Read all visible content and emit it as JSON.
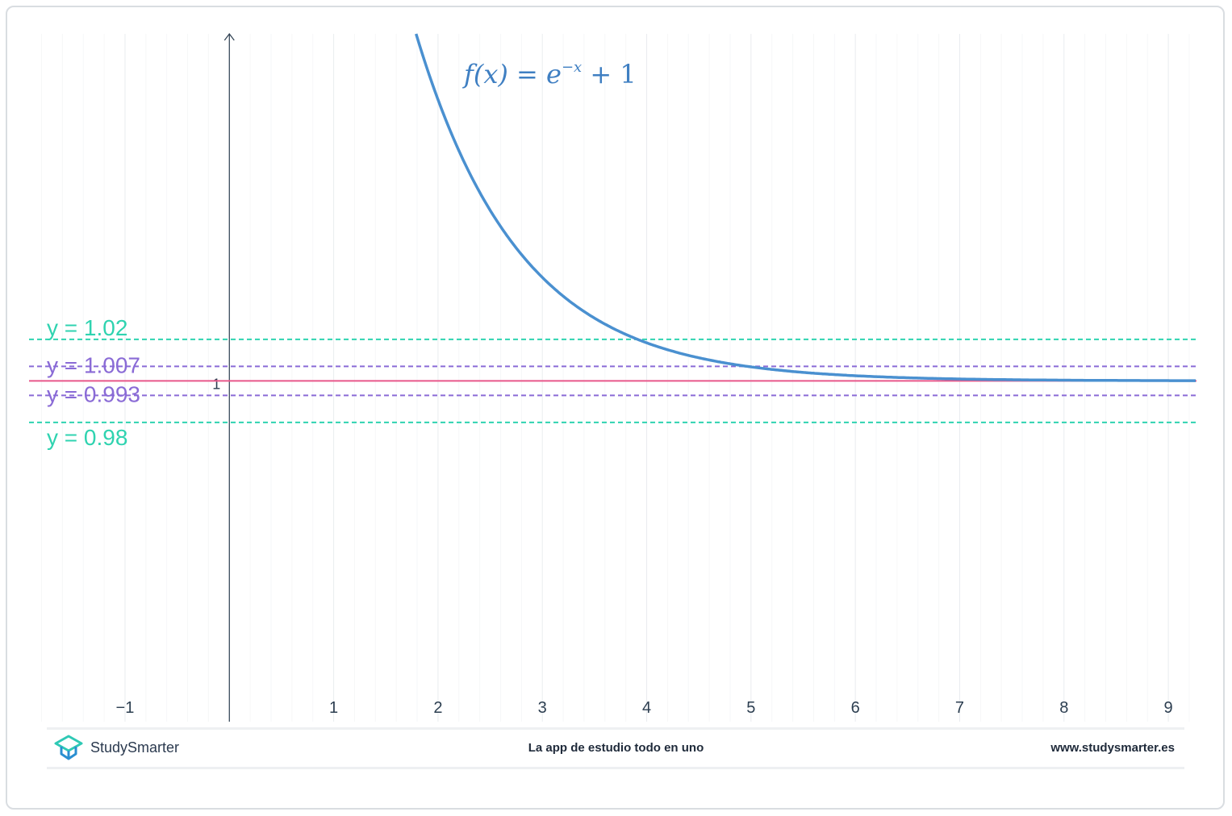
{
  "chart_data": {
    "type": "line",
    "title": "f(x) = e^{-x} + 1",
    "title_parts": {
      "lhs": "f(x)",
      "eq": "=",
      "base": "e",
      "exp": "−x",
      "rest": "+ 1"
    },
    "function": "e^(-x) + 1",
    "xlim": [
      -1.92,
      9.27
    ],
    "ylim": [
      0.836,
      1.167
    ],
    "x_ticks": [
      -1,
      1,
      2,
      3,
      4,
      5,
      6,
      7,
      8,
      9
    ],
    "x_tick_labels": [
      "−1",
      "1",
      "2",
      "3",
      "4",
      "5",
      "6",
      "7",
      "8",
      "9"
    ],
    "y_ticks": [
      1
    ],
    "y_tick_labels": [
      "1"
    ],
    "grid": true,
    "curve_color": "#4a90d0",
    "horizontal_lines": [
      {
        "y": 1.02,
        "label": "y = 1.02",
        "color": "#2fd3b0",
        "style": "dashed"
      },
      {
        "y": 1.007,
        "label": "y = 1.007",
        "color": "#8a6bd6",
        "style": "dashed"
      },
      {
        "y": 1,
        "label": "",
        "color": "#e8578a",
        "style": "solid"
      },
      {
        "y": 0.993,
        "label": "y = 0.993",
        "color": "#8a6bd6",
        "style": "dashed"
      },
      {
        "y": 0.98,
        "label": "y = 0.98",
        "color": "#2fd3b0",
        "style": "dashed"
      }
    ]
  },
  "footer": {
    "brand": "StudySmarter",
    "tagline": "La app de estudio todo en uno",
    "url": "www.studysmarter.es"
  }
}
